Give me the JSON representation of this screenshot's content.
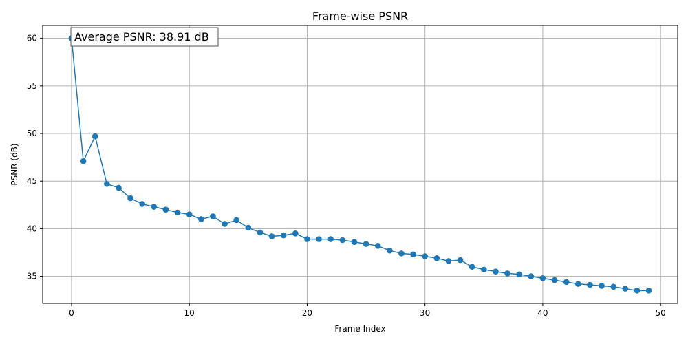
{
  "chart_data": {
    "type": "line",
    "title": "Frame-wise PSNR",
    "xlabel": "Frame Index",
    "ylabel": "PSNR (dB)",
    "xlim": [
      -2.45,
      51.45
    ],
    "ylim": [
      32.15,
      61.35
    ],
    "xticks": [
      0,
      10,
      20,
      30,
      40,
      50
    ],
    "yticks": [
      35,
      40,
      45,
      50,
      55,
      60
    ],
    "grid": true,
    "color": "#1f77b4",
    "annotation": "Average PSNR: 38.91 dB",
    "x": [
      0,
      1,
      2,
      3,
      4,
      5,
      6,
      7,
      8,
      9,
      10,
      11,
      12,
      13,
      14,
      15,
      16,
      17,
      18,
      19,
      20,
      21,
      22,
      23,
      24,
      25,
      26,
      27,
      28,
      29,
      30,
      31,
      32,
      33,
      34,
      35,
      36,
      37,
      38,
      39,
      40,
      41,
      42,
      43,
      44,
      45,
      46,
      47,
      48,
      49
    ],
    "values": [
      60.0,
      47.1,
      49.7,
      44.7,
      44.3,
      43.2,
      42.6,
      42.3,
      42.0,
      41.7,
      41.5,
      41.0,
      41.3,
      40.5,
      40.9,
      40.1,
      39.6,
      39.2,
      39.3,
      39.5,
      38.9,
      38.9,
      38.9,
      38.8,
      38.6,
      38.4,
      38.2,
      37.7,
      37.4,
      37.3,
      37.1,
      36.9,
      36.6,
      36.7,
      36.0,
      35.7,
      35.5,
      35.3,
      35.2,
      35.0,
      34.8,
      34.6,
      34.4,
      34.2,
      34.1,
      34.0,
      33.9,
      33.7,
      33.5,
      33.5
    ]
  }
}
